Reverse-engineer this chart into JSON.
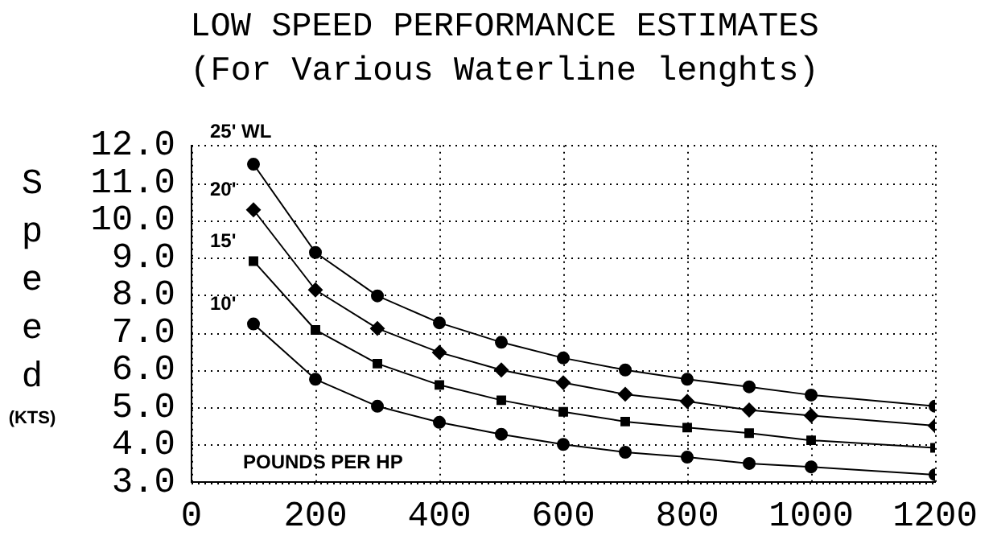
{
  "chart_data": {
    "type": "line",
    "title": "LOW SPEED PERFORMANCE ESTIMATES",
    "subtitle": "(For Various Waterline lenghts)",
    "xlabel": "POUNDS PER HP",
    "ylabel": "Speed (KTS)",
    "x": [
      100,
      200,
      300,
      400,
      500,
      600,
      700,
      800,
      900,
      1000,
      1200
    ],
    "series": [
      {
        "name": "25' WL",
        "color": "#000000",
        "marker": "circle",
        "values": [
          11.5,
          9.14,
          7.98,
          7.26,
          6.74,
          6.32,
          6.0,
          5.75,
          5.55,
          5.33,
          5.03
        ]
      },
      {
        "name": "20'",
        "color": "#000000",
        "marker": "diamond",
        "values": [
          10.28,
          8.14,
          7.11,
          6.47,
          6.0,
          5.66,
          5.35,
          5.16,
          4.93,
          4.78,
          4.51
        ]
      },
      {
        "name": "15'",
        "color": "#000000",
        "marker": "square",
        "values": [
          8.91,
          7.07,
          6.17,
          5.6,
          5.19,
          4.88,
          4.62,
          4.46,
          4.31,
          4.12,
          3.92
        ]
      },
      {
        "name": "10'",
        "color": "#000000",
        "marker": "circle",
        "values": [
          7.23,
          5.75,
          5.03,
          4.6,
          4.28,
          4.01,
          3.8,
          3.67,
          3.5,
          3.41,
          3.2
        ]
      }
    ],
    "xlim": [
      0,
      1200
    ],
    "xticks": [
      0,
      200,
      400,
      600,
      800,
      1000,
      1200
    ],
    "ylim": [
      3,
      12
    ],
    "yticks": [
      {
        "value": 3,
        "label": "3.0"
      },
      {
        "value": 4,
        "label": "4.0"
      },
      {
        "value": 5,
        "label": "5.0"
      },
      {
        "value": 6,
        "label": "6.0"
      },
      {
        "value": 7,
        "label": "7.0"
      },
      {
        "value": 8,
        "label": "8.0"
      },
      {
        "value": 9,
        "label": "9.0"
      },
      {
        "value": 10,
        "label": "10.0"
      },
      {
        "value": 11,
        "label": "11.0"
      },
      {
        "value": 12,
        "label": "12.0"
      }
    ],
    "grid": true,
    "legend": false,
    "line_style": "solid"
  }
}
